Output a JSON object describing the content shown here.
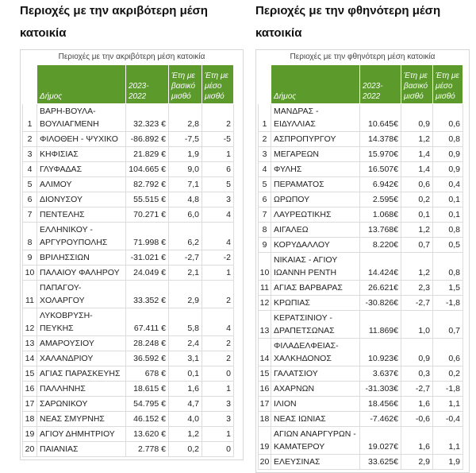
{
  "tables": [
    {
      "title": "Περιοχές με την ακριβότερη μέση κατοικία",
      "caption": "Περιοχές με την ακριβότερη μέση κατοικία",
      "headers": [
        "Δήμος",
        "2023-2022",
        "Έτη με βασικό μισθό",
        "Έτη με μέσο μισθό"
      ],
      "rows": [
        [
          "1",
          "ΒΑΡΗ-ΒΟΥΛΑ-ΒΟΥΛΙΑΓΜΕΝΗ",
          "32.323 €",
          "2,8",
          "2"
        ],
        [
          "2",
          "ΦΙΛΟΘΕΗ - ΨΥΧΙΚΟ",
          "-86.892 €",
          "-7,5",
          "-5"
        ],
        [
          "3",
          "ΚΗΦΙΣΙΑΣ",
          "21.829 €",
          "1,9",
          "1"
        ],
        [
          "4",
          "ΓΛΥΦΑΔΑΣ",
          "104.665 €",
          "9,0",
          "6"
        ],
        [
          "5",
          "ΑΛΙΜΟΥ",
          "82.792 €",
          "7,1",
          "5"
        ],
        [
          "6",
          "ΔΙΟΝΥΣΟΥ",
          "55.515 €",
          "4,8",
          "3"
        ],
        [
          "7",
          "ΠΕΝΤΕΛΗΣ",
          "70.271 €",
          "6,0",
          "4"
        ],
        [
          "8",
          "ΕΛΛΗΝΙΚΟΥ - ΑΡΓΥΡΟΥΠΟΛΗΣ",
          "71.998 €",
          "6,2",
          "4"
        ],
        [
          "9",
          "ΒΡΙΛΗΣΣΙΩΝ",
          "-31.021 €",
          "-2,7",
          "-2"
        ],
        [
          "10",
          "ΠΑΛΑΙΟΥ ΦΑΛΗΡΟΥ",
          "24.049 €",
          "2,1",
          "1"
        ],
        [
          "11",
          "ΠΑΠΑΓΟΥ-ΧΟΛΑΡΓΟΥ",
          "33.352 €",
          "2,9",
          "2"
        ],
        [
          "12",
          "ΛΥΚΟΒΡΥΣΗ-ΠΕΥΚΗΣ",
          "67.411 €",
          "5,8",
          "4"
        ],
        [
          "13",
          "ΑΜΑΡΟΥΣΙΟΥ",
          "28.248 €",
          "2,4",
          "2"
        ],
        [
          "14",
          "ΧΑΛΑΝΔΡΙΟΥ",
          "36.592 €",
          "3,1",
          "2"
        ],
        [
          "15",
          "ΑΓΙΑΣ ΠΑΡΑΣΚΕΥΗΣ",
          "678 €",
          "0,1",
          "0"
        ],
        [
          "16",
          "ΠΑΛΛΗΝΗΣ",
          "18.615 €",
          "1,6",
          "1"
        ],
        [
          "17",
          "ΣΑΡΩΝΙΚΟΥ",
          "54.795 €",
          "4,7",
          "3"
        ],
        [
          "18",
          "ΝΕΑΣ ΣΜΥΡΝΗΣ",
          "46.152 €",
          "4,0",
          "3"
        ],
        [
          "19",
          "ΑΓΙΟΥ ΔΗΜΗΤΡΙΟΥ",
          "13.620 €",
          "1,2",
          "1"
        ],
        [
          "20",
          "ΠΑΙΑΝΙΑΣ",
          "2.778 €",
          "0,2",
          "0"
        ]
      ]
    },
    {
      "title": "Περιοχές με την φθηνότερη μέση κατοικία",
      "caption": "Περιοχές με την φθηνότερη μέση κατοικία",
      "headers": [
        "Δήμος",
        "2023-2022",
        "Έτη με βασικό μισθό",
        "Έτη με μέσο μισθό"
      ],
      "rows": [
        [
          "1",
          "ΜΑΝΔΡΑΣ - ΕΙΔΥΛΛΙΑΣ",
          "10.645€",
          "0,9",
          "0,6"
        ],
        [
          "2",
          "ΑΣΠΡΟΠΥΡΓΟΥ",
          "14.378€",
          "1,2",
          "0,8"
        ],
        [
          "3",
          "ΜΕΓΑΡΕΩΝ",
          "15.970€",
          "1,4",
          "0,9"
        ],
        [
          "4",
          "ΦΥΛΗΣ",
          "16.507€",
          "1,4",
          "0,9"
        ],
        [
          "5",
          "ΠΕΡΑΜΑΤΟΣ",
          "6.942€",
          "0,6",
          "0,4"
        ],
        [
          "6",
          "ΩΡΩΠΟΥ",
          "2.595€",
          "0,2",
          "0,1"
        ],
        [
          "7",
          "ΛΑΥΡΕΩΤΙΚΗΣ",
          "1.068€",
          "0,1",
          "0,1"
        ],
        [
          "8",
          "ΑΙΓΑΛΕΩ",
          "13.768€",
          "1,2",
          "0,8"
        ],
        [
          "9",
          "ΚΟΡΥΔΑΛΛΟΥ",
          "8.220€",
          "0,7",
          "0,5"
        ],
        [
          "10",
          "ΝΙΚΑΙΑΣ - ΑΓΙΟΥ ΙΩΑΝΝΗ ΡΕΝΤΗ",
          "14.424€",
          "1,2",
          "0,8"
        ],
        [
          "11",
          "ΑΓΙΑΣ ΒΑΡΒΑΡΑΣ",
          "26.621€",
          "2,3",
          "1,5"
        ],
        [
          "12",
          "ΚΡΩΠΙΑΣ",
          "-30.826€",
          "-2,7",
          "-1,8"
        ],
        [
          "13",
          "ΚΕΡΑΤΣΙΝΙΟΥ - ΔΡΑΠΕΤΣΩΝΑΣ",
          "11.869€",
          "1,0",
          "0,7"
        ],
        [
          "14",
          "ΦΙΛΑΔΕΛΦΕΙΑΣ-ΧΑΛΚΗΔΟΝΟΣ",
          "10.923€",
          "0,9",
          "0,6"
        ],
        [
          "15",
          "ΓΑΛΑΤΣΙΟΥ",
          "3.637€",
          "0,3",
          "0,2"
        ],
        [
          "16",
          "ΑΧΑΡΝΩΝ",
          "-31.303€",
          "-2,7",
          "-1,8"
        ],
        [
          "17",
          "ΙΛΙΟΝ",
          "18.456€",
          "1,6",
          "1,1"
        ],
        [
          "18",
          "ΝΕΑΣ ΙΩΝΙΑΣ",
          "-7.462€",
          "-0,6",
          "-0,4"
        ],
        [
          "19",
          "ΑΓΙΩΝ ΑΝΑΡΓΥΡΩΝ - ΚΑΜΑΤΕΡΟΥ",
          "19.027€",
          "1,6",
          "1,1"
        ],
        [
          "20",
          "ΕΛΕΥΣΙΝΑΣ",
          "33.625€",
          "2,9",
          "1,9"
        ]
      ]
    }
  ]
}
